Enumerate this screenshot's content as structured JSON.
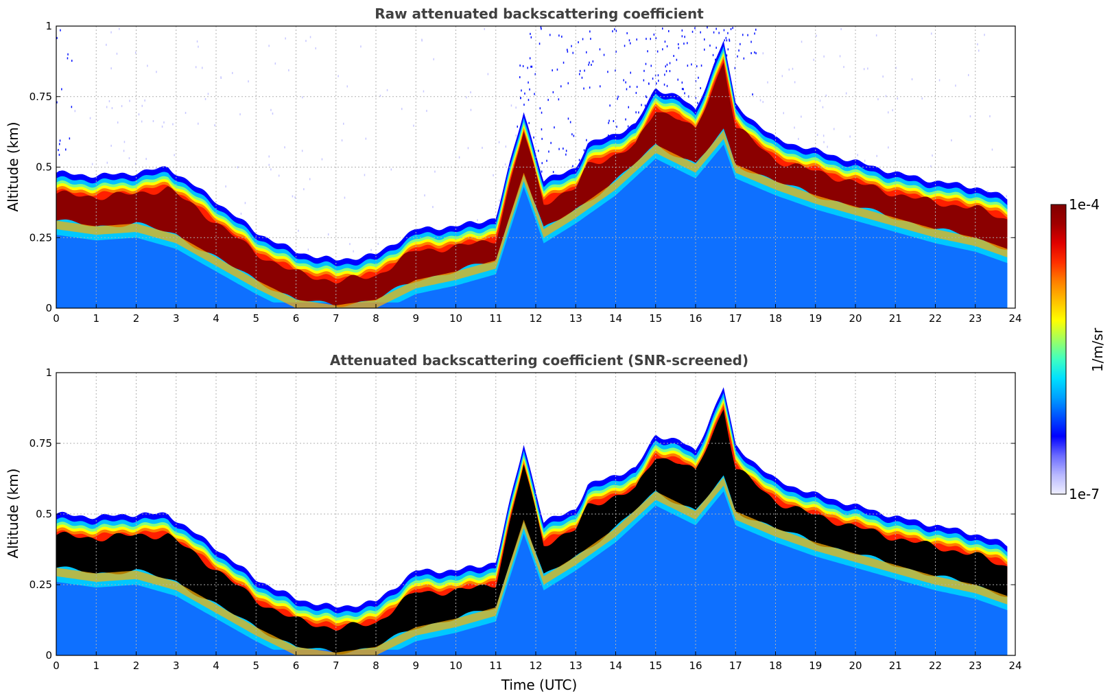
{
  "chart_data": [
    {
      "type": "heatmap",
      "title": "Raw attenuated backscattering coefficient",
      "xlabel": "",
      "ylabel": "Altitude (km)",
      "xlim": [
        0,
        24
      ],
      "ylim": [
        0,
        1
      ],
      "xticks": [
        "0",
        "1",
        "2",
        "3",
        "4",
        "5",
        "6",
        "7",
        "8",
        "9",
        "10",
        "11",
        "12",
        "13",
        "14",
        "15",
        "16",
        "17",
        "18",
        "19",
        "20",
        "21",
        "22",
        "23",
        "24"
      ],
      "yticks": [
        "0",
        "0.25",
        "0.5",
        "0.75",
        "1"
      ],
      "grid": true,
      "screened": false,
      "layer_top_km": [
        {
          "t": 0,
          "z": 0.48
        },
        {
          "t": 1,
          "z": 0.47
        },
        {
          "t": 2,
          "z": 0.48
        },
        {
          "t": 2.8,
          "z": 0.5
        },
        {
          "t": 3,
          "z": 0.48
        },
        {
          "t": 4,
          "z": 0.38
        },
        {
          "t": 5,
          "z": 0.27
        },
        {
          "t": 6,
          "z": 0.2
        },
        {
          "t": 7,
          "z": 0.17
        },
        {
          "t": 8,
          "z": 0.19
        },
        {
          "t": 9,
          "z": 0.28
        },
        {
          "t": 10,
          "z": 0.29
        },
        {
          "t": 11,
          "z": 0.32
        },
        {
          "t": 11.7,
          "z": 0.7
        },
        {
          "t": 12.2,
          "z": 0.45
        },
        {
          "t": 13,
          "z": 0.5
        },
        {
          "t": 13.3,
          "z": 0.58
        },
        {
          "t": 14,
          "z": 0.62
        },
        {
          "t": 14.5,
          "z": 0.65
        },
        {
          "t": 15,
          "z": 0.78
        },
        {
          "t": 15.6,
          "z": 0.75
        },
        {
          "t": 16,
          "z": 0.7
        },
        {
          "t": 16.7,
          "z": 0.95
        },
        {
          "t": 17,
          "z": 0.72
        },
        {
          "t": 18,
          "z": 0.6
        },
        {
          "t": 19,
          "z": 0.56
        },
        {
          "t": 20,
          "z": 0.52
        },
        {
          "t": 21,
          "z": 0.48
        },
        {
          "t": 22,
          "z": 0.45
        },
        {
          "t": 23,
          "z": 0.43
        },
        {
          "t": 23.8,
          "z": 0.39
        }
      ],
      "layer_core_km": [
        {
          "t": 0,
          "z": 0.38
        },
        {
          "t": 1,
          "z": 0.36
        },
        {
          "t": 2,
          "z": 0.37
        },
        {
          "t": 3,
          "z": 0.33
        },
        {
          "t": 4,
          "z": 0.25
        },
        {
          "t": 5,
          "z": 0.17
        },
        {
          "t": 6,
          "z": 0.1
        },
        {
          "t": 7,
          "z": 0.08
        },
        {
          "t": 8,
          "z": 0.1
        },
        {
          "t": 9,
          "z": 0.17
        },
        {
          "t": 10,
          "z": 0.2
        },
        {
          "t": 11,
          "z": 0.24
        },
        {
          "t": 11.7,
          "z": 0.55
        },
        {
          "t": 12.2,
          "z": 0.35
        },
        {
          "t": 13,
          "z": 0.42
        },
        {
          "t": 14,
          "z": 0.52
        },
        {
          "t": 15,
          "z": 0.65
        },
        {
          "t": 16,
          "z": 0.58
        },
        {
          "t": 16.7,
          "z": 0.7
        },
        {
          "t": 17,
          "z": 0.58
        },
        {
          "t": 18,
          "z": 0.52
        },
        {
          "t": 19,
          "z": 0.47
        },
        {
          "t": 20,
          "z": 0.43
        },
        {
          "t": 21,
          "z": 0.39
        },
        {
          "t": 22,
          "z": 0.35
        },
        {
          "t": 23,
          "z": 0.32
        },
        {
          "t": 23.8,
          "z": 0.28
        }
      ]
    },
    {
      "type": "heatmap",
      "title": "Attenuated backscattering coefficient (SNR-screened)",
      "xlabel": "Time (UTC)",
      "ylabel": "Altitude (km)",
      "xlim": [
        0,
        24
      ],
      "ylim": [
        0,
        1
      ],
      "xticks": [
        "0",
        "1",
        "2",
        "3",
        "4",
        "5",
        "6",
        "7",
        "8",
        "9",
        "10",
        "11",
        "12",
        "13",
        "14",
        "15",
        "16",
        "17",
        "18",
        "19",
        "20",
        "21",
        "22",
        "23",
        "24"
      ],
      "yticks": [
        "0",
        "0.25",
        "0.5",
        "0.75",
        "1"
      ],
      "grid": true,
      "screened": true,
      "layer_top_km": [
        {
          "t": 0,
          "z": 0.5
        },
        {
          "t": 1,
          "z": 0.49
        },
        {
          "t": 2,
          "z": 0.5
        },
        {
          "t": 2.8,
          "z": 0.5
        },
        {
          "t": 3,
          "z": 0.48
        },
        {
          "t": 4,
          "z": 0.38
        },
        {
          "t": 5,
          "z": 0.27
        },
        {
          "t": 6,
          "z": 0.2
        },
        {
          "t": 7,
          "z": 0.17
        },
        {
          "t": 8,
          "z": 0.19
        },
        {
          "t": 9,
          "z": 0.3
        },
        {
          "t": 10,
          "z": 0.3
        },
        {
          "t": 11,
          "z": 0.33
        },
        {
          "t": 11.7,
          "z": 0.75
        },
        {
          "t": 12.2,
          "z": 0.47
        },
        {
          "t": 13,
          "z": 0.52
        },
        {
          "t": 13.3,
          "z": 0.6
        },
        {
          "t": 14,
          "z": 0.64
        },
        {
          "t": 14.5,
          "z": 0.66
        },
        {
          "t": 15,
          "z": 0.78
        },
        {
          "t": 15.6,
          "z": 0.76
        },
        {
          "t": 16,
          "z": 0.72
        },
        {
          "t": 16.7,
          "z": 0.95
        },
        {
          "t": 17,
          "z": 0.74
        },
        {
          "t": 18,
          "z": 0.62
        },
        {
          "t": 19,
          "z": 0.57
        },
        {
          "t": 20,
          "z": 0.53
        },
        {
          "t": 21,
          "z": 0.49
        },
        {
          "t": 22,
          "z": 0.46
        },
        {
          "t": 23,
          "z": 0.43
        },
        {
          "t": 23.8,
          "z": 0.39
        }
      ],
      "layer_core_km": [
        {
          "t": 0,
          "z": 0.38
        },
        {
          "t": 1,
          "z": 0.36
        },
        {
          "t": 2,
          "z": 0.37
        },
        {
          "t": 3,
          "z": 0.33
        },
        {
          "t": 4,
          "z": 0.25
        },
        {
          "t": 5,
          "z": 0.17
        },
        {
          "t": 6,
          "z": 0.1
        },
        {
          "t": 7,
          "z": 0.08
        },
        {
          "t": 8,
          "z": 0.1
        },
        {
          "t": 9,
          "z": 0.17
        },
        {
          "t": 10,
          "z": 0.2
        },
        {
          "t": 11,
          "z": 0.24
        },
        {
          "t": 11.7,
          "z": 0.55
        },
        {
          "t": 12.2,
          "z": 0.35
        },
        {
          "t": 13,
          "z": 0.42
        },
        {
          "t": 14,
          "z": 0.52
        },
        {
          "t": 15,
          "z": 0.65
        },
        {
          "t": 16,
          "z": 0.58
        },
        {
          "t": 16.7,
          "z": 0.7
        },
        {
          "t": 17,
          "z": 0.58
        },
        {
          "t": 18,
          "z": 0.52
        },
        {
          "t": 19,
          "z": 0.47
        },
        {
          "t": 20,
          "z": 0.43
        },
        {
          "t": 21,
          "z": 0.39
        },
        {
          "t": 22,
          "z": 0.35
        },
        {
          "t": 23,
          "z": 0.32
        },
        {
          "t": 23.8,
          "z": 0.28
        }
      ]
    }
  ],
  "colorbar": {
    "label": "1/m/sr",
    "max_label": "1e-4",
    "min_label": "1e-7",
    "colors": [
      "#efefff",
      "#b8b8ff",
      "#6a6aff",
      "#0000ff",
      "#0050ff",
      "#00a0ff",
      "#00e0ff",
      "#40ffc0",
      "#a0ff60",
      "#ffff00",
      "#ffc000",
      "#ff8000",
      "#ff3000",
      "#e00000",
      "#a00000",
      "#800000"
    ]
  },
  "colors": {
    "background_clear": "#ffffff",
    "boundary_layer": "#1060ff",
    "aerosol_layer": "#00c8ff",
    "cloud_core_raw": "#8b0000",
    "cloud_core_screened": "#000000",
    "title_color": "#404040"
  }
}
